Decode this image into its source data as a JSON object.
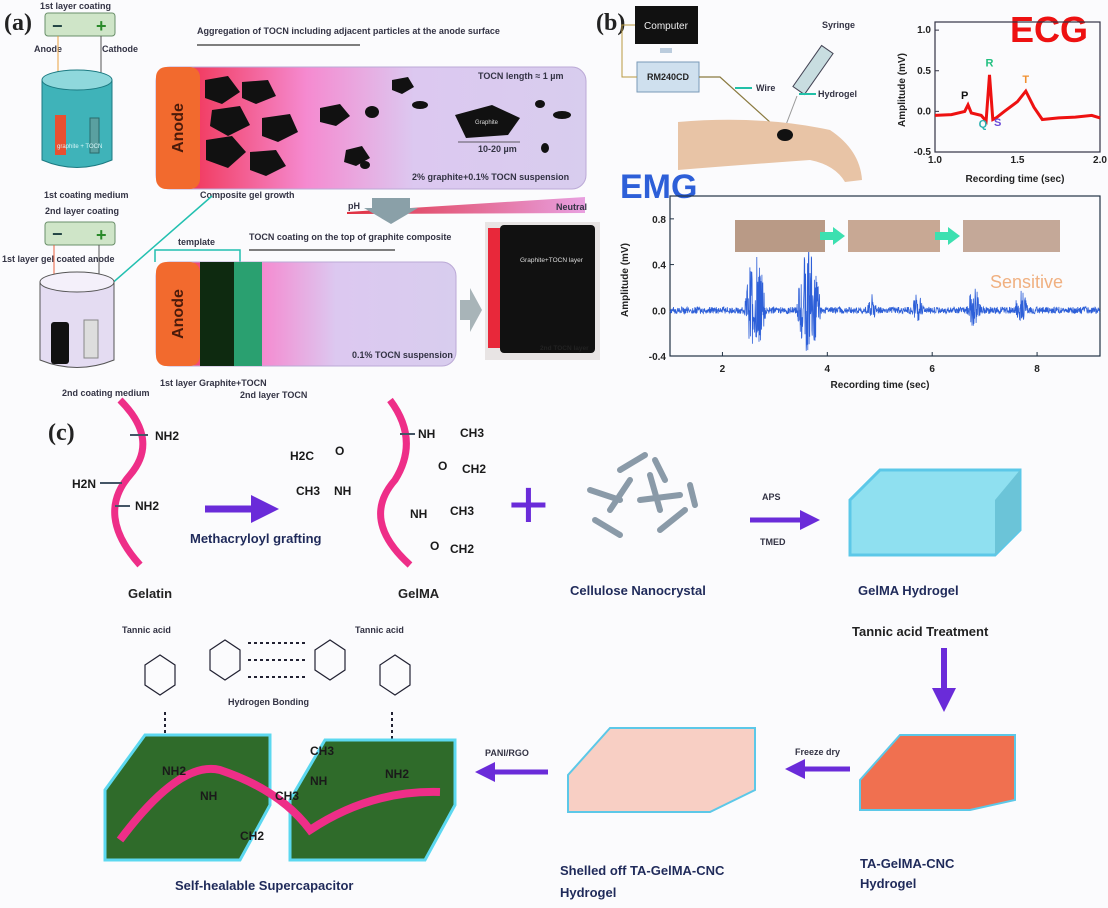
{
  "panel_a": {
    "label": "(a)",
    "beaker1": {
      "title": "1st layer coating",
      "anode": "Anode",
      "cathode": "Cathode",
      "medium_text": "graphite + TOCN",
      "caption": "1st coating medium"
    },
    "top_schematic": {
      "title": "Aggregation of TOCN including adjacent particles at the anode surface",
      "anode": "Anode",
      "tocn_length": "TOCN length ≈ 1 µm",
      "graphite": "Graphite",
      "size": "10-20 µm",
      "suspension": "2% graphite+0.1% TOCN suspension",
      "growth": "Composite gel growth",
      "ph": "pH",
      "neutral": "Neutral"
    },
    "beaker2": {
      "title": "2nd layer coating",
      "coated_anode": "1st layer gel coated anode",
      "caption": "2nd coating medium"
    },
    "bottom_schematic": {
      "title": "TOCN coating on the top of graphite composite",
      "template": "template",
      "anode": "Anode",
      "suspension": "0.1% TOCN suspension",
      "layer1": "1st layer Graphite+TOCN",
      "layer2": "2nd layer TOCN"
    },
    "photo": {
      "label1": "Graphite+TOCN layer",
      "label2": "2nd TOCN layer"
    }
  },
  "panel_b": {
    "label": "(b)",
    "computer": "Computer",
    "device": "RM240CD",
    "wire": "Wire",
    "syringe": "Syringe",
    "hydrogel": "Hydrogel",
    "emg_photos_caption": "",
    "sensitive": "Sensitive"
  },
  "panel_c": {
    "label": "(c)",
    "gelatin": {
      "caption": "Gelatin",
      "groups": [
        "NH2",
        "H2N",
        "NH2"
      ]
    },
    "grafting": "Methacryloyl grafting",
    "gelma": {
      "caption": "GelMA",
      "groups": [
        "NH",
        "CH3",
        "CH2",
        "O",
        "H2C",
        "O",
        "CH3",
        "NH",
        "NH",
        "CH3",
        "O",
        "CH2"
      ]
    },
    "plus": "+",
    "cnc": "Cellulose Nanocrystal",
    "aps": "APS",
    "tmed": "TMED",
    "gelma_hydrogel": "GelMA Hydrogel",
    "tannic_treatment": "Tannic acid Treatment",
    "ta_hydrogel": [
      "TA-GelMA-CNC",
      "Hydrogel"
    ],
    "freeze_dry": "Freeze dry",
    "shelled": [
      "Shelled off TA-GelMA-CNC",
      "Hydrogel"
    ],
    "pani": "PANI/RGO",
    "tannic_left": "Tannic acid",
    "tannic_right": "Tannic acid",
    "hbond": "Hydrogen Bonding",
    "supercap": "Self-healable Supercapacitor",
    "supercap_groups": [
      "NH2",
      "NH2",
      "NH",
      "CH3",
      "CH3",
      "NH",
      "CH2"
    ]
  },
  "colors": {
    "anode": "#f26a2e",
    "arrow": "#6a2bd9",
    "ecg": "#ee1111",
    "emg": "#2d5fd8",
    "ribbon": "#ee2e88",
    "hydrogel": "#8fe0f0",
    "ta": "#f07050",
    "shelled": "#f8cfc4",
    "supercap": "#2f6b2a"
  },
  "chart_data": [
    {
      "type": "line",
      "title": "ECG",
      "xlabel": "Recording time (sec)",
      "ylabel": "Amplitude (mV)",
      "xlim": [
        1.0,
        2.0
      ],
      "ylim": [
        -0.5,
        1.1
      ],
      "xticks": [
        "1.0",
        "1.5",
        "2.0"
      ],
      "yticks": [
        "-0.5",
        "0.0",
        "0.5",
        "1.0"
      ],
      "annotations": [
        "P",
        "Q",
        "R",
        "S",
        "T"
      ],
      "series": [
        {
          "x": [
            1.0,
            1.1,
            1.18,
            1.2,
            1.22,
            1.28,
            1.31,
            1.33,
            1.35,
            1.37,
            1.42,
            1.5,
            1.55,
            1.6,
            1.65,
            1.75,
            1.85,
            1.95,
            2.0
          ],
          "values": [
            -0.05,
            -0.04,
            0.0,
            0.08,
            -0.02,
            -0.05,
            -0.12,
            0.45,
            -0.1,
            -0.08,
            0.0,
            0.12,
            0.25,
            0.05,
            -0.1,
            -0.08,
            -0.07,
            -0.05,
            -0.08
          ]
        }
      ],
      "grid": false
    },
    {
      "type": "line",
      "title": "EMG",
      "xlabel": "Recording time (sec)",
      "ylabel": "Amplitude (mV)",
      "xlim": [
        1.0,
        9.2
      ],
      "ylim": [
        -0.4,
        1.0
      ],
      "xticks": [
        "2",
        "4",
        "6",
        "8"
      ],
      "yticks": [
        "-0.4",
        "0.0",
        "0.4",
        "0.8"
      ],
      "bursts": [
        {
          "start": 2.4,
          "end": 2.85,
          "peak": 0.5,
          "trough": -0.4
        },
        {
          "start": 3.4,
          "end": 3.9,
          "peak": 0.6,
          "trough": -0.4
        },
        {
          "start": 4.75,
          "end": 4.95,
          "peak": 0.15,
          "trough": -0.1
        },
        {
          "start": 5.6,
          "end": 5.85,
          "peak": 0.15,
          "trough": -0.1
        },
        {
          "start": 6.65,
          "end": 6.95,
          "peak": 0.2,
          "trough": -0.15
        },
        {
          "start": 7.55,
          "end": 7.85,
          "peak": 0.18,
          "trough": -0.1
        }
      ],
      "baseline_noise": 0.03,
      "grid": false
    }
  ]
}
